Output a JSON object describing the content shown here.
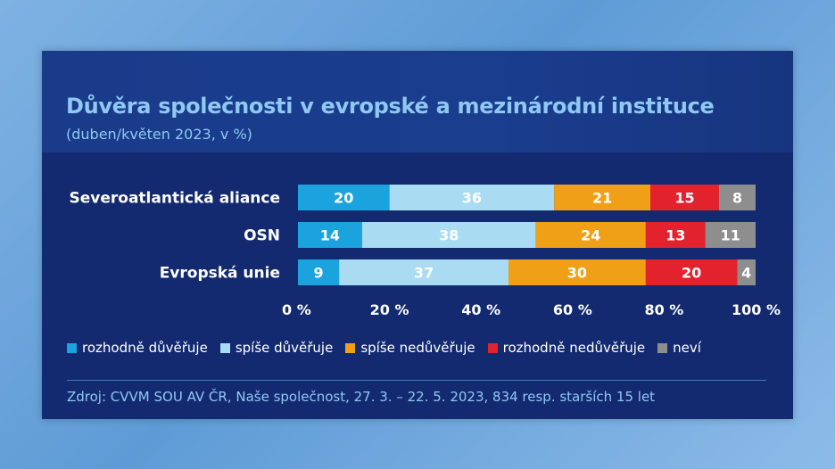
{
  "chart_data": {
    "type": "bar",
    "orientation": "horizontal",
    "stacked": true,
    "title": "Důvěra společnosti v evropské a mezinárodní instituce",
    "subtitle": "(duben/květen 2023, v %)",
    "categories": [
      "Severoatlantická aliance",
      "OSN",
      "Evropská unie"
    ],
    "series": [
      {
        "name": "rozhodně důvěřuje",
        "color": "#1ba3dd",
        "label_color": "#ffffff",
        "values": [
          20,
          14,
          9
        ]
      },
      {
        "name": "spíše důvěřuje",
        "color": "#a9dcf3",
        "label_color": "#ffffff",
        "values": [
          36,
          38,
          37
        ]
      },
      {
        "name": "spíše nedůvěřuje",
        "color": "#f0a016",
        "label_color": "#ffffff",
        "values": [
          21,
          24,
          30
        ]
      },
      {
        "name": "rozhodně nedůvěřuje",
        "color": "#e2232e",
        "label_color": "#ffffff",
        "values": [
          15,
          13,
          20
        ]
      },
      {
        "name": "neví",
        "color": "#8e8e8e",
        "label_color": "#ffffff",
        "values": [
          8,
          11,
          4
        ]
      }
    ],
    "xlim": [
      0,
      100
    ],
    "xticks": [
      0,
      20,
      40,
      60,
      80,
      100
    ],
    "xtick_labels": [
      "0 %",
      "20 %",
      "40 %",
      "60 %",
      "80 %",
      "100 %"
    ],
    "legend_position": "bottom",
    "grid": false,
    "source": "Zdroj: CVVM SOU AV ČR, Naše společnost, 27. 3. – 22. 5. 2023, 834 resp. starších 15 let"
  }
}
